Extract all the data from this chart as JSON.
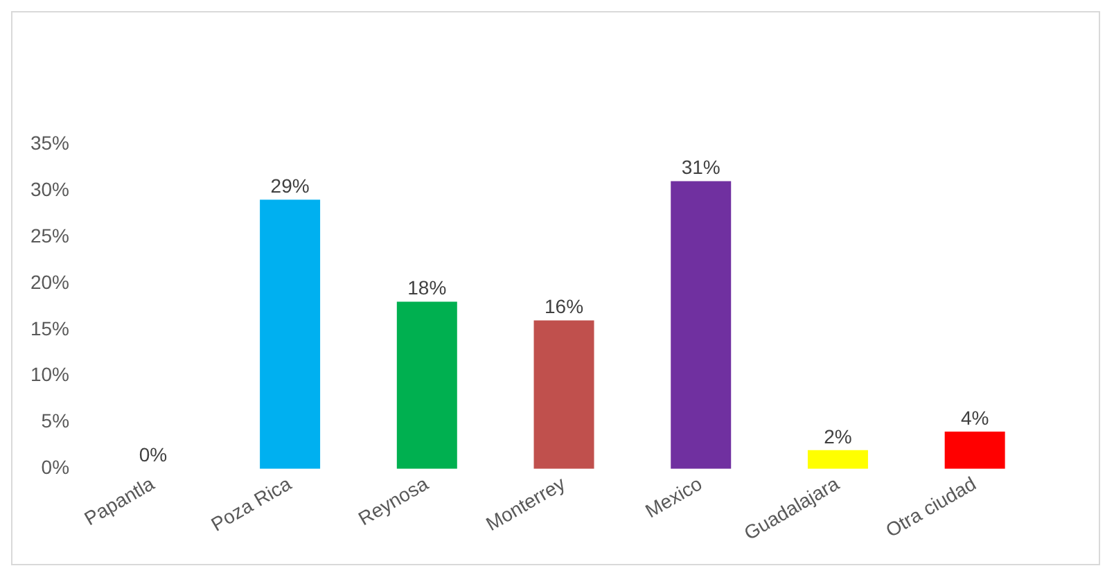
{
  "chart_data": {
    "type": "bar",
    "categories": [
      "Papantla",
      "Poza Rica",
      "Reynosa",
      "Monterrey",
      "Mexico",
      "Guadalajara",
      "Otra ciudad"
    ],
    "values": [
      0,
      29,
      18,
      16,
      31,
      2,
      4
    ],
    "colors": [
      "#000000",
      "#00b0f0",
      "#00b050",
      "#c0504d",
      "#7030a0",
      "#ffff00",
      "#ff0000"
    ],
    "value_labels": [
      "0%",
      "29%",
      "18%",
      "16%",
      "31%",
      "2%",
      "4%"
    ],
    "ylim": [
      0,
      35
    ],
    "yticks": [
      {
        "value": 0,
        "label": "0%"
      },
      {
        "value": 5,
        "label": "5%"
      },
      {
        "value": 10,
        "label": "10%"
      },
      {
        "value": 15,
        "label": "15%"
      },
      {
        "value": 20,
        "label": "20%"
      },
      {
        "value": 25,
        "label": "25%"
      },
      {
        "value": 30,
        "label": "30%"
      },
      {
        "value": 35,
        "label": "35%"
      }
    ],
    "grid": false,
    "legend": false
  }
}
